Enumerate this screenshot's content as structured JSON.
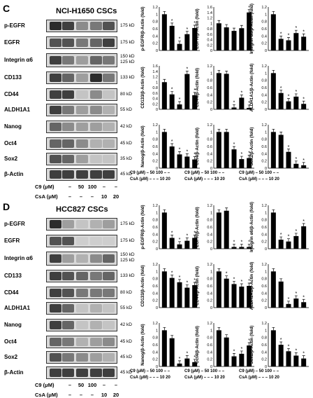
{
  "panels": [
    {
      "letter": "C",
      "title": "NCI-H1650 CSCs",
      "blots": [
        {
          "label": "p-EGFR",
          "kda": "175 kD"
        },
        {
          "label": "EGFR",
          "kda": "175 kD"
        },
        {
          "label": "Integrin α6",
          "kda": "150 kD\n125 kD"
        },
        {
          "label": "CD133",
          "kda": "133 kD"
        },
        {
          "label": "CD44",
          "kda": "80 kD"
        },
        {
          "label": "ALDH1A1",
          "kda": "55 kD"
        },
        {
          "label": "Nanog",
          "kda": "42 kD"
        },
        {
          "label": "Oct4",
          "kda": "45 kD"
        },
        {
          "label": "Sox2",
          "kda": "35 kD"
        },
        {
          "label": "β-Actin",
          "kda": "45 kD"
        }
      ],
      "treatment": {
        "c9_label": "C9 (μM)",
        "c9_values": [
          "–",
          "50",
          "100",
          "–",
          "–"
        ],
        "csa_label": "CsA (μM)",
        "csa_values": [
          "–",
          "–",
          "–",
          "10",
          "20"
        ]
      },
      "chart_data": [
        {
          "type": "bar",
          "ylabel": "p-EGFR/β-Actin (fold)",
          "ylim": [
            0,
            1.2
          ],
          "yticks": [
            "0",
            "0.2",
            "0.4",
            "0.6",
            "0.8",
            "1",
            "1.2"
          ],
          "values": [
            1.0,
            0.68,
            0.18,
            0.45,
            0.62
          ],
          "stars": [
            false,
            true,
            true,
            true,
            true
          ]
        },
        {
          "type": "bar",
          "ylabel": "EGFR/β-Actin (fold)",
          "ylim": [
            0,
            1.6
          ],
          "yticks": [
            "0",
            "0.2",
            "0.4",
            "0.6",
            "0.8",
            "1",
            "1.2",
            "1.4",
            "1.6"
          ],
          "values": [
            1.0,
            0.85,
            0.72,
            0.82,
            1.4
          ],
          "stars": [
            false,
            false,
            false,
            false,
            true
          ]
        },
        {
          "type": "bar",
          "ylabel": "Integrin α6/β-Actin (fold)",
          "ylim": [
            0,
            1.2
          ],
          "yticks": [
            "0",
            "0.2",
            "0.4",
            "0.6",
            "0.8",
            "1",
            "1.2"
          ],
          "values": [
            1.0,
            0.32,
            0.28,
            0.48,
            0.38
          ],
          "stars": [
            false,
            true,
            true,
            true,
            true
          ]
        },
        {
          "type": "bar",
          "ylabel": "CD133/β-Actin (fold)",
          "ylim": [
            0,
            1.6
          ],
          "yticks": [
            "0",
            "0.2",
            "0.4",
            "0.6",
            "0.8",
            "1",
            "1.2",
            "1.4",
            "1.6"
          ],
          "values": [
            1.0,
            0.55,
            0.18,
            1.3,
            0.52
          ],
          "stars": [
            false,
            true,
            true,
            true,
            true
          ]
        },
        {
          "type": "bar",
          "ylabel": "CD44/β-Actin (fold)",
          "ylim": [
            0,
            1.2
          ],
          "yticks": [
            "0",
            "0.2",
            "0.4",
            "0.6",
            "0.8",
            "1",
            "1.2"
          ],
          "values": [
            1.0,
            0.98,
            0.05,
            0.32,
            0.04
          ],
          "stars": [
            false,
            false,
            true,
            true,
            true
          ]
        },
        {
          "type": "bar",
          "ylabel": "ALDH1A1/β-Actin (fold)",
          "ylim": [
            0,
            1.2
          ],
          "yticks": [
            "0",
            "0.2",
            "0.4",
            "0.6",
            "0.8",
            "1",
            "1.2"
          ],
          "values": [
            1.0,
            0.45,
            0.22,
            0.35,
            0.15
          ],
          "stars": [
            false,
            true,
            true,
            true,
            true
          ]
        },
        {
          "type": "bar",
          "ylabel": "Nanog/β-Actin (fold)",
          "ylim": [
            0,
            1.2
          ],
          "yticks": [
            "0",
            "0.2",
            "0.4",
            "0.6",
            "0.8",
            "1",
            "1.2"
          ],
          "values": [
            1.0,
            0.6,
            0.38,
            0.32,
            0.24
          ],
          "stars": [
            false,
            true,
            true,
            true,
            true
          ]
        },
        {
          "type": "bar",
          "ylabel": "Oct4/β-Actin (fold)",
          "ylim": [
            0,
            1.2
          ],
          "yticks": [
            "0",
            "0.2",
            "0.4",
            "0.6",
            "0.8",
            "1",
            "1.2"
          ],
          "values": [
            1.0,
            1.0,
            0.52,
            0.25,
            0.28
          ],
          "stars": [
            false,
            false,
            true,
            true,
            true
          ]
        },
        {
          "type": "bar",
          "ylabel": "Sox2/β-Actin (fold)",
          "ylim": [
            0,
            1.2
          ],
          "yticks": [
            "0",
            "0.2",
            "0.4",
            "0.6",
            "0.8",
            "1",
            "1.2"
          ],
          "values": [
            1.0,
            0.92,
            0.45,
            0.12,
            0.08
          ],
          "stars": [
            false,
            false,
            true,
            true,
            true
          ]
        }
      ]
    },
    {
      "letter": "D",
      "title": "HCC827 CSCs",
      "blots": [
        {
          "label": "p-EGFR",
          "kda": "175 kD"
        },
        {
          "label": "EGFR",
          "kda": "175 kD"
        },
        {
          "label": "Integrin α6",
          "kda": "150 kD\n125 kD"
        },
        {
          "label": "CD133",
          "kda": "133 kD"
        },
        {
          "label": "CD44",
          "kda": "80 kD"
        },
        {
          "label": "ALDH1A1",
          "kda": "55 kD"
        },
        {
          "label": "Nanog",
          "kda": "42 kD"
        },
        {
          "label": "Oct4",
          "kda": "45 kD"
        },
        {
          "label": "Sox2",
          "kda": "45 kD"
        },
        {
          "label": "β-Actin",
          "kda": "45 kD"
        }
      ],
      "treatment": {
        "c9_label": "C9 (μM)",
        "c9_values": [
          "–",
          "50",
          "100",
          "–",
          "–"
        ],
        "csa_label": "CsA (μM)",
        "csa_values": [
          "–",
          "–",
          "–",
          "10",
          "20"
        ]
      },
      "chart_data": [
        {
          "type": "bar",
          "ylabel": "p-EGFR/β-Actin (fold)",
          "ylim": [
            0,
            1.2
          ],
          "yticks": [
            "0",
            "0.2",
            "0.4",
            "0.6",
            "0.8",
            "1",
            "1.2"
          ],
          "values": [
            1.0,
            0.3,
            0.12,
            0.22,
            0.3
          ],
          "stars": [
            false,
            true,
            true,
            true,
            true
          ]
        },
        {
          "type": "bar",
          "ylabel": "EGFR/β-Actin (fold)",
          "ylim": [
            0,
            1.2
          ],
          "yticks": [
            "0",
            "0.2",
            "0.4",
            "0.6",
            "0.8",
            "1",
            "1.2"
          ],
          "values": [
            1.0,
            1.05,
            0.05,
            0.05,
            0.05
          ],
          "stars": [
            false,
            false,
            true,
            true,
            true
          ]
        },
        {
          "type": "bar",
          "ylabel": "Integrin α6/β-Actin (fold)",
          "ylim": [
            0,
            1.2
          ],
          "yticks": [
            "0",
            "0.2",
            "0.4",
            "0.6",
            "0.8",
            "1",
            "1.2"
          ],
          "values": [
            1.0,
            0.25,
            0.2,
            0.35,
            0.62
          ],
          "stars": [
            false,
            true,
            true,
            true,
            true
          ]
        },
        {
          "type": "bar",
          "ylabel": "CD133/β-Actin (fold)",
          "ylim": [
            0,
            1.2
          ],
          "yticks": [
            "0",
            "0.2",
            "0.4",
            "0.6",
            "0.8",
            "1",
            "1.2"
          ],
          "values": [
            1.0,
            0.82,
            0.7,
            0.55,
            0.62
          ],
          "stars": [
            false,
            true,
            true,
            true,
            true
          ]
        },
        {
          "type": "bar",
          "ylabel": "CD44/β-Actin (fold)",
          "ylim": [
            0,
            1.2
          ],
          "yticks": [
            "0",
            "0.2",
            "0.4",
            "0.6",
            "0.8",
            "1",
            "1.2"
          ],
          "values": [
            1.0,
            0.8,
            0.65,
            0.58,
            0.6
          ],
          "stars": [
            false,
            true,
            true,
            true,
            true
          ]
        },
        {
          "type": "bar",
          "ylabel": "ALDH1A1/β-Actin (fold)",
          "ylim": [
            0,
            1.2
          ],
          "yticks": [
            "0",
            "0.2",
            "0.4",
            "0.6",
            "0.8",
            "1",
            "1.2"
          ],
          "values": [
            1.0,
            0.72,
            0.1,
            0.25,
            0.15
          ],
          "stars": [
            false,
            false,
            true,
            true,
            true
          ]
        },
        {
          "type": "bar",
          "ylabel": "Nanog/β-Actin (fold)",
          "ylim": [
            0,
            1.2
          ],
          "yticks": [
            "0",
            "0.2",
            "0.4",
            "0.6",
            "0.8",
            "1",
            "1.2"
          ],
          "values": [
            1.0,
            0.78,
            0.08,
            0.22,
            0.12
          ],
          "stars": [
            false,
            false,
            true,
            true,
            true
          ]
        },
        {
          "type": "bar",
          "ylabel": "Oct4/β-Actin (fold)",
          "ylim": [
            0,
            1.2
          ],
          "yticks": [
            "0",
            "0.2",
            "0.4",
            "0.6",
            "0.8",
            "1",
            "1.2"
          ],
          "values": [
            1.0,
            0.8,
            0.28,
            0.35,
            0.58
          ],
          "stars": [
            false,
            false,
            true,
            true,
            true
          ]
        },
        {
          "type": "bar",
          "ylabel": "Sox2/β-Actin (fold)",
          "ylim": [
            0,
            1.2
          ],
          "yticks": [
            "0",
            "0.2",
            "0.4",
            "0.6",
            "0.8",
            "1",
            "1.2"
          ],
          "values": [
            1.0,
            0.6,
            0.42,
            0.3,
            0.22
          ],
          "stars": [
            false,
            true,
            true,
            true,
            true
          ]
        }
      ]
    }
  ]
}
